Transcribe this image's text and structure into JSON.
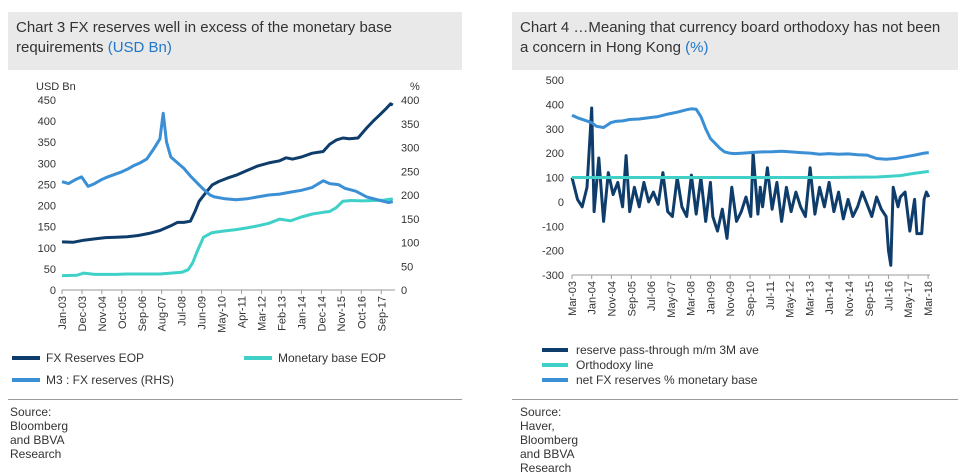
{
  "colors": {
    "fx_reserves": "#0f3d6b",
    "monetary_base": "#3fd1c8",
    "m3_ratio": "#3b8fd4",
    "title_bg": "#e9e9e9",
    "unit_blue": "#1f77c9"
  },
  "chart_data": [
    {
      "id": "chart3",
      "type": "line",
      "title": "Chart 3 FX reserves well in excess of the monetary base requirements",
      "title_unit": "(USD Bn)",
      "ylabel_left": "USD Bn",
      "ylabel_right": "%",
      "ylim_left": [
        0,
        450
      ],
      "ylim_right": [
        0,
        400
      ],
      "yticks_left": [
        "0",
        "50",
        "100",
        "150",
        "200",
        "250",
        "300",
        "350",
        "400",
        "450"
      ],
      "yticks_right": [
        "0",
        "50",
        "100",
        "150",
        "200",
        "250",
        "300",
        "350",
        "400"
      ],
      "xlim": [
        2003.0,
        2018.3
      ],
      "xticks": [
        {
          "label": "Jan-03",
          "x": 2003.0
        },
        {
          "label": "Dec-03",
          "x": 2003.92
        },
        {
          "label": "Nov-04",
          "x": 2004.83
        },
        {
          "label": "Oct-05",
          "x": 2005.75
        },
        {
          "label": "Sep-06",
          "x": 2006.67
        },
        {
          "label": "Aug-07",
          "x": 2007.58
        },
        {
          "label": "Jul-08",
          "x": 2008.5
        },
        {
          "label": "Jun-09",
          "x": 2009.42
        },
        {
          "label": "May-10",
          "x": 2010.33
        },
        {
          "label": "Apr-11",
          "x": 2011.25
        },
        {
          "label": "Mar-12",
          "x": 2012.17
        },
        {
          "label": "Feb-13",
          "x": 2013.08
        },
        {
          "label": "Jan-14",
          "x": 2014.0
        },
        {
          "label": "Dec-14",
          "x": 2014.92
        },
        {
          "label": "Nov-15",
          "x": 2015.83
        },
        {
          "label": "Oct-16",
          "x": 2016.75
        },
        {
          "label": "Sep-17",
          "x": 2017.67
        }
      ],
      "series": [
        {
          "name": "FX Reserves EOP",
          "axis": "left",
          "color_key": "fx_reserves",
          "x": [
            2003.0,
            2003.5,
            2004.0,
            2004.5,
            2005.0,
            2005.5,
            2006.0,
            2006.5,
            2007.0,
            2007.5,
            2008.0,
            2008.3,
            2008.6,
            2008.9,
            2009.1,
            2009.3,
            2009.6,
            2009.9,
            2010.2,
            2010.6,
            2011.0,
            2011.5,
            2012.0,
            2012.5,
            2013.0,
            2013.3,
            2013.6,
            2014.0,
            2014.5,
            2015.0,
            2015.3,
            2015.6,
            2015.9,
            2016.2,
            2016.6,
            2017.0,
            2017.3,
            2017.6,
            2017.9,
            2018.1,
            2018.2
          ],
          "y": [
            114,
            113,
            118,
            121,
            124,
            125,
            126,
            129,
            134,
            141,
            152,
            160,
            160,
            163,
            185,
            210,
            230,
            249,
            257,
            265,
            272,
            283,
            294,
            301,
            306,
            313,
            310,
            315,
            324,
            328,
            345,
            355,
            360,
            358,
            360,
            384,
            400,
            415,
            430,
            441,
            438
          ]
        },
        {
          "name": "Monetary base EOP",
          "axis": "left",
          "color_key": "monetary_base",
          "x": [
            2003.0,
            2003.7,
            2004.0,
            2004.5,
            2005.0,
            2005.5,
            2006.0,
            2006.5,
            2007.0,
            2007.5,
            2008.0,
            2008.5,
            2008.8,
            2009.0,
            2009.2,
            2009.5,
            2009.9,
            2010.5,
            2011.0,
            2011.5,
            2012.0,
            2012.5,
            2013.0,
            2013.5,
            2014.0,
            2014.5,
            2015.0,
            2015.3,
            2015.6,
            2015.9,
            2016.3,
            2016.8,
            2017.3,
            2017.8,
            2018.2
          ],
          "y": [
            34,
            35,
            40,
            37,
            37,
            37,
            38,
            38,
            38,
            38,
            40,
            42,
            48,
            64,
            90,
            125,
            136,
            140,
            143,
            147,
            152,
            158,
            168,
            164,
            173,
            180,
            184,
            186,
            195,
            210,
            212,
            211,
            212,
            213,
            216
          ]
        },
        {
          "name": "M3 : FX reserves (RHS)",
          "axis": "right",
          "color_key": "m3_ratio",
          "x": [
            2003.0,
            2003.3,
            2003.6,
            2003.9,
            2004.2,
            2004.5,
            2004.8,
            2005.1,
            2005.4,
            2005.7,
            2006.0,
            2006.3,
            2006.6,
            2006.9,
            2007.2,
            2007.5,
            2007.65,
            2007.8,
            2008.0,
            2008.3,
            2008.6,
            2008.9,
            2009.2,
            2009.5,
            2009.8,
            2010.0,
            2010.5,
            2011.0,
            2011.5,
            2012.0,
            2012.5,
            2013.0,
            2013.5,
            2014.0,
            2014.5,
            2015.0,
            2015.3,
            2015.7,
            2016.0,
            2016.5,
            2017.0,
            2017.5,
            2018.0,
            2018.2
          ],
          "y": [
            228,
            224,
            232,
            238,
            218,
            224,
            232,
            238,
            243,
            248,
            254,
            262,
            268,
            276,
            296,
            318,
            372,
            312,
            280,
            268,
            256,
            240,
            226,
            212,
            200,
            196,
            192,
            190,
            192,
            196,
            200,
            202,
            206,
            210,
            216,
            230,
            224,
            222,
            214,
            208,
            196,
            190,
            184,
            186
          ]
        }
      ],
      "legend": [
        {
          "label": "FX Reserves EOP",
          "color_key": "fx_reserves"
        },
        {
          "label": "Monetary base EOP",
          "color_key": "monetary_base"
        },
        {
          "label": "M3 : FX reserves (RHS)",
          "color_key": "m3_ratio"
        }
      ],
      "source": "Source: Bloomberg and BBVA Research"
    },
    {
      "id": "chart4",
      "type": "line",
      "title": "Chart 4 …Meaning that currency board orthodoxy has not been a concern in Hong Kong",
      "title_unit": "(%)",
      "ylim": [
        -300,
        500
      ],
      "yticks": [
        "-300",
        "-200",
        "-100",
        "0",
        "100",
        "200",
        "300",
        "400",
        "500"
      ],
      "xlim": [
        2003.17,
        2018.25
      ],
      "xticks": [
        {
          "label": "Mar-03",
          "x": 2003.17
        },
        {
          "label": "Jan-04",
          "x": 2004.0
        },
        {
          "label": "Nov-04",
          "x": 2004.83
        },
        {
          "label": "Sep-05",
          "x": 2005.67
        },
        {
          "label": "Jul-06",
          "x": 2006.5
        },
        {
          "label": "May-07",
          "x": 2007.33
        },
        {
          "label": "Mar-08",
          "x": 2008.17
        },
        {
          "label": "Jan-09",
          "x": 2009.0
        },
        {
          "label": "Nov-09",
          "x": 2009.83
        },
        {
          "label": "Sep-10",
          "x": 2010.67
        },
        {
          "label": "Jul-11",
          "x": 2011.5
        },
        {
          "label": "May-12",
          "x": 2012.33
        },
        {
          "label": "Mar-13",
          "x": 2013.17
        },
        {
          "label": "Jan-14",
          "x": 2014.0
        },
        {
          "label": "Nov-14",
          "x": 2014.83
        },
        {
          "label": "Sep-15",
          "x": 2015.67
        },
        {
          "label": "Jul-16",
          "x": 2016.5
        },
        {
          "label": "May-17",
          "x": 2017.33
        },
        {
          "label": "Mar-18",
          "x": 2018.17
        }
      ],
      "series": [
        {
          "name": "reserve pass-through m/m 3M ave",
          "color_key": "fx_reserves",
          "x": [
            2003.17,
            2003.4,
            2003.6,
            2003.8,
            2004.0,
            2004.1,
            2004.3,
            2004.5,
            2004.7,
            2004.9,
            2005.1,
            2005.3,
            2005.45,
            2005.6,
            2005.8,
            2006.0,
            2006.2,
            2006.4,
            2006.6,
            2006.8,
            2007.0,
            2007.2,
            2007.4,
            2007.6,
            2007.8,
            2008.0,
            2008.2,
            2008.4,
            2008.6,
            2008.8,
            2009.0,
            2009.1,
            2009.3,
            2009.5,
            2009.7,
            2009.9,
            2010.1,
            2010.3,
            2010.5,
            2010.7,
            2010.8,
            2011.0,
            2011.1,
            2011.2,
            2011.4,
            2011.6,
            2011.8,
            2012.0,
            2012.2,
            2012.4,
            2012.6,
            2012.8,
            2013.0,
            2013.2,
            2013.4,
            2013.6,
            2013.8,
            2014.0,
            2014.2,
            2014.4,
            2014.6,
            2014.8,
            2015.0,
            2015.2,
            2015.4,
            2015.6,
            2015.8,
            2016.0,
            2016.2,
            2016.4,
            2016.5,
            2016.6,
            2016.7,
            2016.9,
            2017.0,
            2017.2,
            2017.4,
            2017.6,
            2017.7,
            2017.9,
            2018.0,
            2018.1,
            2018.2
          ],
          "y": [
            100,
            10,
            -20,
            60,
            385,
            -40,
            180,
            -80,
            120,
            30,
            80,
            -20,
            190,
            -40,
            60,
            -20,
            80,
            0,
            40,
            -10,
            120,
            -40,
            -60,
            100,
            -20,
            -60,
            110,
            -50,
            100,
            -80,
            80,
            -60,
            -120,
            -30,
            -150,
            60,
            -80,
            -40,
            20,
            -60,
            200,
            -50,
            60,
            -20,
            140,
            -30,
            80,
            -80,
            60,
            -40,
            40,
            -20,
            -60,
            140,
            -50,
            60,
            -20,
            80,
            -40,
            40,
            -70,
            10,
            -60,
            -20,
            40,
            -10,
            -60,
            20,
            -30,
            -60,
            -200,
            -260,
            60,
            -20,
            20,
            40,
            -120,
            10,
            -130,
            -130,
            10,
            40,
            20
          ]
        },
        {
          "name": "Orthodoxy line",
          "color_key": "monetary_base",
          "x": [
            2003.17,
            2008.0,
            2014.0,
            2016.0,
            2017.0,
            2017.5,
            2018.2
          ],
          "y": [
            100,
            100,
            100,
            102,
            108,
            116,
            125
          ]
        },
        {
          "name": "net FX reserves % monetary base",
          "color_key": "m3_ratio",
          "x": [
            2003.17,
            2003.4,
            2003.7,
            2004.0,
            2004.2,
            2004.5,
            2004.8,
            2005.0,
            2005.3,
            2005.6,
            2006.0,
            2006.4,
            2006.8,
            2007.2,
            2007.6,
            2008.0,
            2008.2,
            2008.4,
            2008.6,
            2008.8,
            2009.0,
            2009.2,
            2009.4,
            2009.6,
            2009.8,
            2010.0,
            2010.4,
            2010.8,
            2011.2,
            2011.6,
            2012.0,
            2012.4,
            2012.8,
            2013.2,
            2013.6,
            2014.0,
            2014.4,
            2014.8,
            2015.2,
            2015.6,
            2015.8,
            2016.0,
            2016.4,
            2016.8,
            2017.2,
            2017.6,
            2018.0,
            2018.2
          ],
          "y": [
            355,
            345,
            335,
            325,
            310,
            305,
            325,
            330,
            332,
            338,
            340,
            345,
            350,
            360,
            368,
            378,
            382,
            380,
            350,
            300,
            260,
            240,
            220,
            205,
            200,
            198,
            200,
            203,
            205,
            206,
            208,
            205,
            202,
            200,
            195,
            198,
            195,
            197,
            193,
            192,
            185,
            178,
            175,
            178,
            185,
            192,
            200,
            202
          ]
        }
      ],
      "legend": [
        {
          "label": "reserve pass-through m/m 3M ave",
          "color_key": "fx_reserves"
        },
        {
          "label": "Orthodoxy line",
          "color_key": "monetary_base"
        },
        {
          "label": "net FX reserves % monetary base",
          "color_key": "m3_ratio"
        }
      ],
      "source": "Source: Haver, Bloomberg and BBVA Research"
    }
  ]
}
